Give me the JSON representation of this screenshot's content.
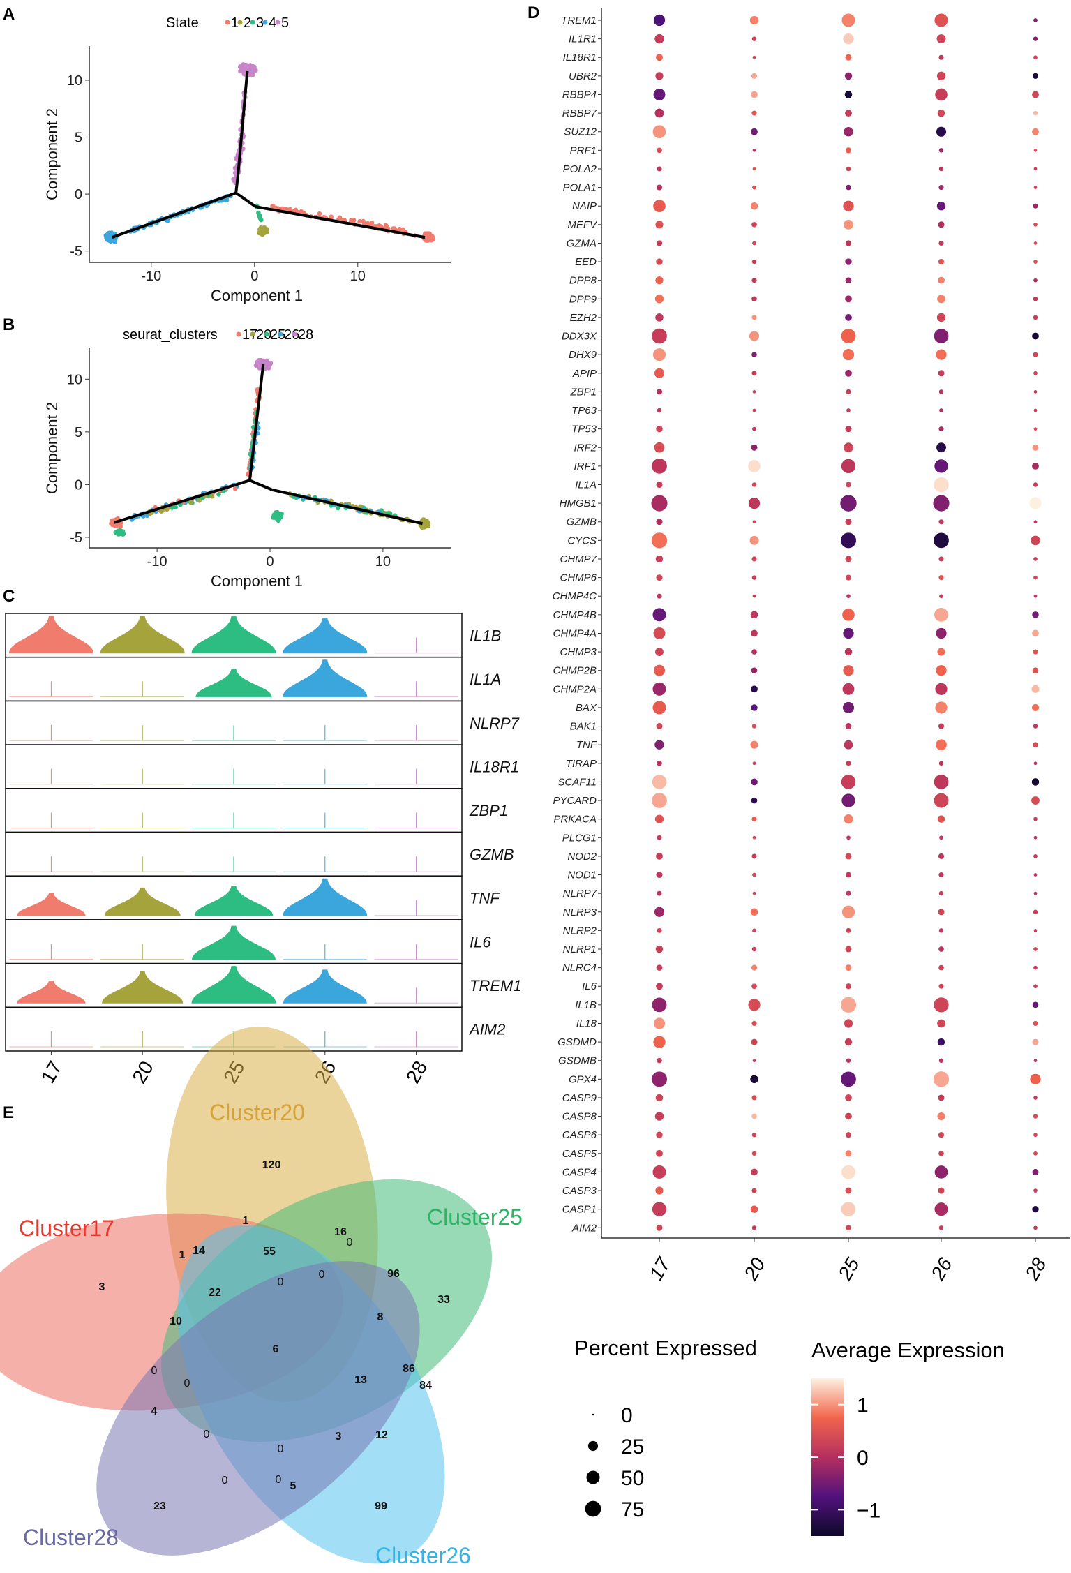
{
  "panels": {
    "a": "A",
    "b": "B",
    "c": "C",
    "d": "D",
    "e": "E"
  },
  "chart_data": [
    {
      "id": "A",
      "type": "scatter",
      "title": "",
      "legend_title": "State",
      "legend": [
        "1",
        "2",
        "3",
        "4",
        "5"
      ],
      "colors": [
        "#f07c6e",
        "#a5a43c",
        "#2dbd83",
        "#3aa6dc",
        "#c985c9"
      ],
      "xlabel": "Component 1",
      "ylabel": "Component 2",
      "xlim": [
        -16,
        19
      ],
      "ylim": [
        -6,
        13
      ],
      "xticks": [
        -10,
        0,
        10
      ],
      "yticks": [
        -5,
        0,
        5,
        10
      ],
      "tree": [
        [
          [
            -1.8,
            0.1
          ],
          [
            -13.8,
            -3.8
          ]
        ],
        [
          [
            -1.8,
            0.1
          ],
          [
            -1.6,
            1.7
          ]
        ],
        [
          [
            -1.6,
            1.7
          ],
          [
            -0.7,
            10.8
          ]
        ],
        [
          [
            -1.8,
            0.1
          ],
          [
            0.1,
            -1.1
          ]
        ],
        [
          [
            0.1,
            -1.1
          ],
          [
            16.5,
            -3.8
          ]
        ]
      ]
    },
    {
      "id": "B",
      "type": "scatter",
      "legend_title": "seurat_clusters",
      "legend": [
        "17",
        "20",
        "25",
        "26",
        "28"
      ],
      "colors": [
        "#f07c6e",
        "#a5a43c",
        "#2dbd83",
        "#3aa6dc",
        "#c985c9"
      ],
      "xlabel": "Component 1",
      "ylabel": "Component 2",
      "xlim": [
        -16,
        16
      ],
      "ylim": [
        -6,
        13
      ],
      "xticks": [
        -10,
        0,
        10
      ],
      "yticks": [
        -5,
        0,
        5,
        10
      ],
      "tree": [
        [
          [
            -1.8,
            0.4
          ],
          [
            -13.8,
            -3.6
          ]
        ],
        [
          [
            -1.8,
            0.4
          ],
          [
            -0.6,
            11.4
          ]
        ],
        [
          [
            -1.8,
            0.4
          ],
          [
            0.2,
            -0.5
          ]
        ],
        [
          [
            0.2,
            -0.5
          ],
          [
            13.5,
            -3.7
          ]
        ]
      ]
    },
    {
      "id": "C",
      "type": "violin",
      "genes": [
        "IL1B",
        "IL1A",
        "NLRP7",
        "IL18R1",
        "ZBP1",
        "GZMB",
        "TNF",
        "IL6",
        "TREM1",
        "AIM2"
      ],
      "categories": [
        "17",
        "20",
        "25",
        "26",
        "28"
      ],
      "colors": [
        "#f07c6e",
        "#a5a43c",
        "#2dbd83",
        "#3aa6dc",
        "#c985c9"
      ],
      "expression": [
        [
          1,
          1,
          1,
          0.95,
          0.02
        ],
        [
          0.02,
          0.02,
          0.75,
          1,
          0.02
        ],
        [
          0.01,
          0.01,
          0.01,
          0.01,
          0.01
        ],
        [
          0.02,
          0.02,
          0.02,
          0.02,
          0.02
        ],
        [
          0.02,
          0.02,
          0.02,
          0.02,
          0.02
        ],
        [
          0.02,
          0.02,
          0.02,
          0.02,
          0.02
        ],
        [
          0.6,
          0.75,
          0.8,
          1,
          0.02
        ],
        [
          0.02,
          0.02,
          0.9,
          0.02,
          0.02
        ],
        [
          0.6,
          0.85,
          1,
          0.9,
          0.02
        ],
        [
          0.02,
          0.02,
          0.02,
          0.02,
          0.02
        ]
      ]
    },
    {
      "id": "D",
      "type": "dot",
      "genes": [
        "TREM1",
        "IL1R1",
        "IL18R1",
        "UBR2",
        "RBBP4",
        "RBBP7",
        "SUZ12",
        "PRF1",
        "POLA2",
        "POLA1",
        "NAIP",
        "MEFV",
        "GZMA",
        "EED",
        "DPP8",
        "DPP9",
        "EZH2",
        "DDX3X",
        "DHX9",
        "APIP",
        "ZBP1",
        "TP63",
        "TP53",
        "IRF2",
        "IRF1",
        "IL1A",
        "HMGB1",
        "GZMB",
        "CYCS",
        "CHMP7",
        "CHMP6",
        "CHMP4C",
        "CHMP4B",
        "CHMP4A",
        "CHMP3",
        "CHMP2B",
        "CHMP2A",
        "BAX",
        "BAK1",
        "TNF",
        "TIRAP",
        "SCAF11",
        "PYCARD",
        "PRKACA",
        "PLCG1",
        "NOD2",
        "NOD1",
        "NLRP7",
        "NLRP3",
        "NLRP2",
        "NLRP1",
        "NLRC4",
        "IL6",
        "IL1B",
        "IL18",
        "GSDMD",
        "GSDMB",
        "GPX4",
        "CASP9",
        "CASP8",
        "CASP6",
        "CASP5",
        "CASP4",
        "CASP3",
        "CASP1",
        "AIM2"
      ],
      "categories": [
        "17",
        "20",
        "25",
        "26",
        "28"
      ],
      "size_legend_title": "Percent Expressed",
      "size_legend": [
        "0",
        "25",
        "50",
        "75"
      ],
      "color_legend_title": "Average Expression",
      "color_ticks": [
        "1",
        "0",
        "−1"
      ],
      "color_range": [
        -1.5,
        1.5
      ],
      "pct": [
        [
          35,
          18,
          50,
          50,
          2
        ],
        [
          22,
          3,
          30,
          20,
          3
        ],
        [
          10,
          1,
          8,
          4,
          2
        ],
        [
          14,
          6,
          12,
          18,
          6
        ],
        [
          38,
          10,
          12,
          42,
          10
        ],
        [
          20,
          4,
          10,
          12,
          3
        ],
        [
          48,
          10,
          22,
          25,
          10
        ],
        [
          5,
          1,
          6,
          3,
          1
        ],
        [
          4,
          1,
          3,
          3,
          1
        ],
        [
          6,
          2,
          5,
          4,
          1
        ],
        [
          42,
          12,
          30,
          18,
          4
        ],
        [
          14,
          5,
          24,
          8,
          2
        ],
        [
          6,
          2,
          6,
          4,
          1
        ],
        [
          9,
          3,
          9,
          6,
          2
        ],
        [
          14,
          4,
          7,
          10,
          2
        ],
        [
          18,
          5,
          10,
          16,
          3
        ],
        [
          15,
          4,
          10,
          18,
          3
        ],
        [
          68,
          25,
          62,
          62,
          10
        ],
        [
          45,
          5,
          35,
          30,
          4
        ],
        [
          25,
          4,
          10,
          8,
          2
        ],
        [
          6,
          1,
          4,
          3,
          1
        ],
        [
          3,
          1,
          2,
          2,
          1
        ],
        [
          9,
          2,
          8,
          4,
          1
        ],
        [
          28,
          8,
          24,
          24,
          8
        ],
        [
          68,
          42,
          58,
          52,
          10
        ],
        [
          8,
          3,
          5,
          65,
          3
        ],
        [
          78,
          35,
          80,
          78,
          40
        ],
        [
          8,
          1,
          8,
          4,
          1
        ],
        [
          72,
          20,
          70,
          68,
          22
        ],
        [
          12,
          4,
          8,
          4,
          2
        ],
        [
          8,
          3,
          6,
          4,
          2
        ],
        [
          4,
          1,
          2,
          2,
          1
        ],
        [
          50,
          12,
          42,
          55,
          9
        ],
        [
          38,
          10,
          30,
          30,
          10
        ],
        [
          16,
          5,
          12,
          14,
          4
        ],
        [
          34,
          7,
          30,
          30,
          7
        ],
        [
          50,
          10,
          38,
          40,
          14
        ],
        [
          50,
          9,
          34,
          40,
          11
        ],
        [
          8,
          3,
          8,
          6,
          3
        ],
        [
          22,
          14,
          20,
          32,
          5
        ],
        [
          5,
          1,
          4,
          3,
          1
        ],
        [
          60,
          10,
          60,
          62,
          12
        ],
        [
          68,
          7,
          52,
          62,
          16
        ],
        [
          18,
          4,
          22,
          12,
          2
        ],
        [
          4,
          1,
          2,
          2,
          1
        ],
        [
          10,
          4,
          8,
          6,
          2
        ],
        [
          8,
          2,
          5,
          4,
          1
        ],
        [
          4,
          1,
          4,
          3,
          1
        ],
        [
          25,
          12,
          46,
          8,
          3
        ],
        [
          4,
          2,
          4,
          3,
          1
        ],
        [
          12,
          3,
          8,
          5,
          2
        ],
        [
          7,
          6,
          8,
          5,
          2
        ],
        [
          10,
          5,
          6,
          4,
          2
        ],
        [
          62,
          40,
          72,
          65,
          7
        ],
        [
          35,
          4,
          18,
          16,
          4
        ],
        [
          40,
          8,
          12,
          12,
          8
        ],
        [
          5,
          1,
          3,
          3,
          1
        ],
        [
          70,
          15,
          68,
          72,
          30
        ],
        [
          12,
          4,
          10,
          8,
          2
        ],
        [
          18,
          5,
          10,
          14,
          3
        ],
        [
          9,
          3,
          6,
          6,
          2
        ],
        [
          10,
          3,
          8,
          5,
          2
        ],
        [
          50,
          10,
          56,
          48,
          8
        ],
        [
          14,
          4,
          8,
          8,
          2
        ],
        [
          58,
          12,
          60,
          50,
          9
        ],
        [
          8,
          3,
          5,
          3,
          2
        ]
      ],
      "avg": [
        [
          -0.8,
          0.9,
          0.9,
          0.5,
          -0.4
        ],
        [
          0.2,
          0.2,
          1.3,
          0.3,
          -0.4
        ],
        [
          0.7,
          0.3,
          0.7,
          0.1,
          0.3
        ],
        [
          0.2,
          1.1,
          -0.3,
          0.3,
          -1.3
        ],
        [
          -0.6,
          1.1,
          -1.4,
          0.2,
          0.3
        ],
        [
          0,
          0.5,
          0.2,
          0.3,
          1.2
        ],
        [
          1,
          -0.5,
          -0.2,
          -1.2,
          0.9
        ],
        [
          0.4,
          0.1,
          0.6,
          -0.2,
          0.5
        ],
        [
          0.1,
          0.5,
          0.3,
          0.1,
          0.2
        ],
        [
          0,
          0.4,
          -0.4,
          -0.2,
          0.3
        ],
        [
          0.6,
          0.9,
          0.5,
          -0.6,
          -0.2
        ],
        [
          0.5,
          0.3,
          1,
          0,
          0.4
        ],
        [
          0.2,
          0.3,
          0.1,
          0.1,
          0.4
        ],
        [
          0.4,
          0.2,
          -0.3,
          0.5,
          0.5
        ],
        [
          0.7,
          0.2,
          -0.2,
          0.9,
          0
        ],
        [
          0.8,
          0.1,
          -0.2,
          0.9,
          0.1
        ],
        [
          0.1,
          1,
          -0.5,
          0.3,
          0.2
        ],
        [
          0.2,
          1,
          0.7,
          -0.4,
          -1.4
        ],
        [
          1,
          -0.4,
          0.8,
          0.8,
          0.3
        ],
        [
          0.6,
          0.2,
          -0.2,
          0.2,
          0.3
        ],
        [
          0,
          0.2,
          0.2,
          0.1,
          0.2
        ],
        [
          0.1,
          0.2,
          0.2,
          0,
          0.2
        ],
        [
          0.3,
          0.1,
          0.2,
          -0.1,
          0.4
        ],
        [
          0.4,
          -0.3,
          0.3,
          -1.2,
          1
        ],
        [
          0.1,
          1.4,
          0.1,
          -0.6,
          -0.1
        ],
        [
          0.2,
          0.3,
          0.3,
          1.4,
          0.2
        ],
        [
          -0.1,
          0.1,
          -0.5,
          -0.4,
          1.5
        ],
        [
          0,
          0.3,
          0.2,
          0.1,
          0.1
        ],
        [
          0.8,
          1,
          -1.1,
          -1.3,
          0.3
        ],
        [
          0.2,
          0.3,
          0.3,
          0.2,
          0.2
        ],
        [
          0.3,
          0.2,
          0.3,
          0.5,
          0.3
        ],
        [
          0.1,
          0.2,
          0.1,
          0.2,
          0.1
        ],
        [
          -0.6,
          0.1,
          0.7,
          1.1,
          -0.5
        ],
        [
          0.4,
          0.1,
          -0.6,
          -0.3,
          1.1
        ],
        [
          0.3,
          0,
          0.1,
          0.8,
          0.5
        ],
        [
          0.6,
          -0.2,
          0.6,
          0.7,
          0.5
        ],
        [
          -0.2,
          -1.2,
          0.1,
          0.1,
          1.2
        ],
        [
          0.6,
          -0.7,
          -0.5,
          0.9,
          0.8
        ],
        [
          0.3,
          0.4,
          0.1,
          0.2,
          0.1
        ],
        [
          -0.4,
          0.9,
          0.1,
          0.8,
          0.4
        ],
        [
          0.1,
          0.2,
          0.2,
          0.1,
          0.1
        ],
        [
          1.2,
          -0.5,
          0.2,
          0.1,
          -1.4
        ],
        [
          1.1,
          -1.1,
          -0.5,
          0.3,
          0.4
        ],
        [
          0.5,
          0.6,
          0.9,
          0.5,
          0.2
        ],
        [
          0.2,
          0.3,
          0.1,
          0.1,
          0.1
        ],
        [
          0.2,
          0.2,
          0.4,
          0.1,
          0.2
        ],
        [
          0.1,
          0.3,
          0.1,
          0.1,
          0.1
        ],
        [
          0.1,
          0.3,
          0.1,
          0.2,
          0.1
        ],
        [
          -0.2,
          0.8,
          1,
          0.3,
          0.2
        ],
        [
          0.3,
          0.2,
          0.3,
          0.1,
          0.2
        ],
        [
          0.2,
          0.2,
          0.3,
          0.1,
          0.3
        ],
        [
          0.2,
          0.9,
          0.9,
          0.3,
          0.2
        ],
        [
          0.2,
          0.3,
          0.3,
          0.3,
          0.2
        ],
        [
          -0.3,
          0.4,
          1.1,
          0.3,
          -0.6
        ],
        [
          1,
          0.4,
          0.3,
          0.3,
          0.5
        ],
        [
          0.7,
          0.3,
          0.2,
          -1,
          1.1
        ],
        [
          0.2,
          0.2,
          0.1,
          0.1,
          0.1
        ],
        [
          -0.3,
          -1.4,
          -0.6,
          1.1,
          0.7
        ],
        [
          0.3,
          0.4,
          0.3,
          0.2,
          0.2
        ],
        [
          0.2,
          1.2,
          0.3,
          0.9,
          0.4
        ],
        [
          0.3,
          0.3,
          0.3,
          0.3,
          0.3
        ],
        [
          0.3,
          0.4,
          0.9,
          0.3,
          0.3
        ],
        [
          0.2,
          0.2,
          1.4,
          -0.3,
          -0.4
        ],
        [
          0.6,
          0.3,
          0.4,
          0.3,
          0.2
        ],
        [
          0.2,
          0.6,
          1.3,
          -0.1,
          -1.3
        ],
        [
          0.3,
          0.2,
          0.3,
          0.2,
          0.2
        ]
      ]
    },
    {
      "id": "E",
      "type": "venn",
      "sets": [
        "Cluster17",
        "Cluster20",
        "Cluster25",
        "Cluster26",
        "Cluster28"
      ],
      "set_colors": [
        "#e4392f",
        "#d4a43a",
        "#2db467",
        "#32b5e6",
        "#6a6aa6"
      ],
      "counts": [
        "120",
        "1",
        "16",
        "0",
        "0",
        "96",
        "33",
        "3",
        "1",
        "14",
        "55",
        "0",
        "22",
        "10",
        "6",
        "8",
        "86",
        "13",
        "84",
        "0",
        "0",
        "4",
        "0",
        "0",
        "3",
        "12",
        "0",
        "0",
        "5",
        "23",
        "99"
      ]
    }
  ]
}
